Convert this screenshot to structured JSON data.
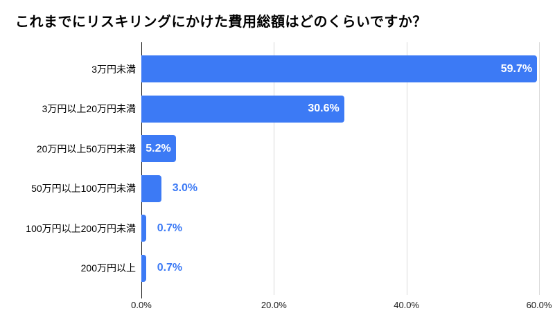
{
  "title": "これまでにリスキリングにかけた費用総額はどのくらいですか？",
  "chart_data": {
    "type": "bar",
    "orientation": "horizontal",
    "title": "これまでにリスキリングにかけた費用総額はどのくらいですか？",
    "categories": [
      "3万円未満",
      "3万円以上20万円未満",
      "20万円以上50万円未満",
      "50万円以上100万円未満",
      "100万円以上200万円未満",
      "200万円以上"
    ],
    "values": [
      59.7,
      30.6,
      5.2,
      3.0,
      0.7,
      0.7
    ],
    "value_labels": [
      "59.7%",
      "30.6%",
      "5.2%",
      "3.0%",
      "0.7%",
      "0.7%"
    ],
    "x_ticks": [
      {
        "label": "0.0%",
        "value": 0
      },
      {
        "label": "20.0%",
        "value": 20
      },
      {
        "label": "40.0%",
        "value": 40
      },
      {
        "label": "60.0%",
        "value": 60
      }
    ],
    "xlim": [
      0,
      60
    ],
    "grid": true,
    "legend": false,
    "colors": {
      "bar": "#3c7af5",
      "label_inside": "#ffffff",
      "label_outside": "#3c7af5",
      "gridline": "#d9d9d9",
      "axis": "#1c1c1c",
      "text": "#000000"
    }
  }
}
